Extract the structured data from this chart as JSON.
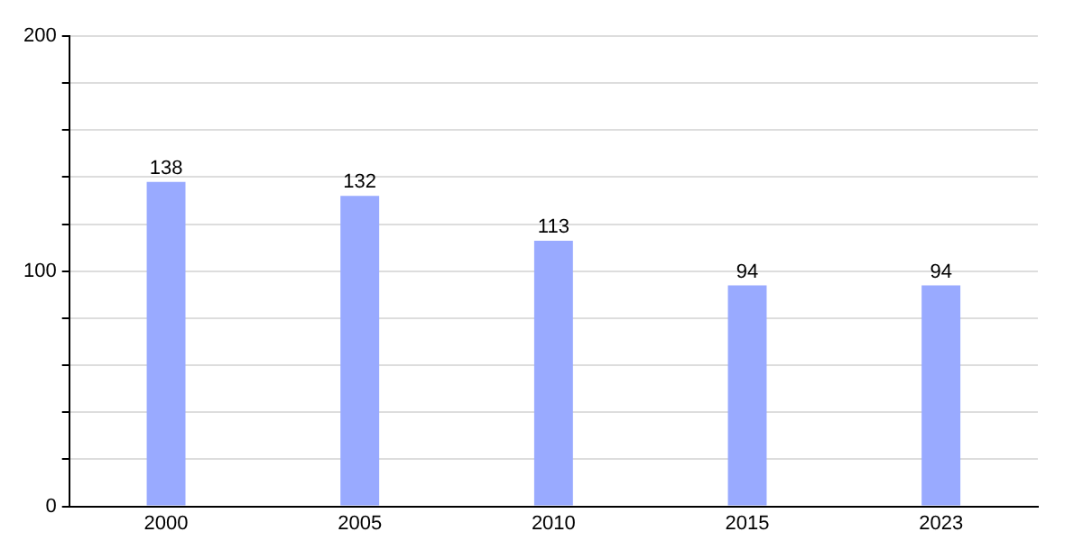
{
  "chart_data": {
    "type": "bar",
    "categories": [
      "2000",
      "2005",
      "2010",
      "2015",
      "2023"
    ],
    "values": [
      138,
      132,
      113,
      94,
      94
    ],
    "color": "#99aaff",
    "data_labels": true,
    "ylim": [
      0,
      200
    ],
    "yticks": [
      0,
      {
        "value": 20,
        "label": null
      },
      {
        "value": 40,
        "label": null
      },
      {
        "value": 60,
        "label": null
      },
      {
        "value": 80,
        "label": null
      },
      100,
      {
        "value": 120,
        "label": null
      },
      {
        "value": 140,
        "label": null
      },
      {
        "value": 160,
        "label": null
      },
      {
        "value": 180,
        "label": null
      },
      200
    ],
    "grid": "y",
    "legend": false
  }
}
